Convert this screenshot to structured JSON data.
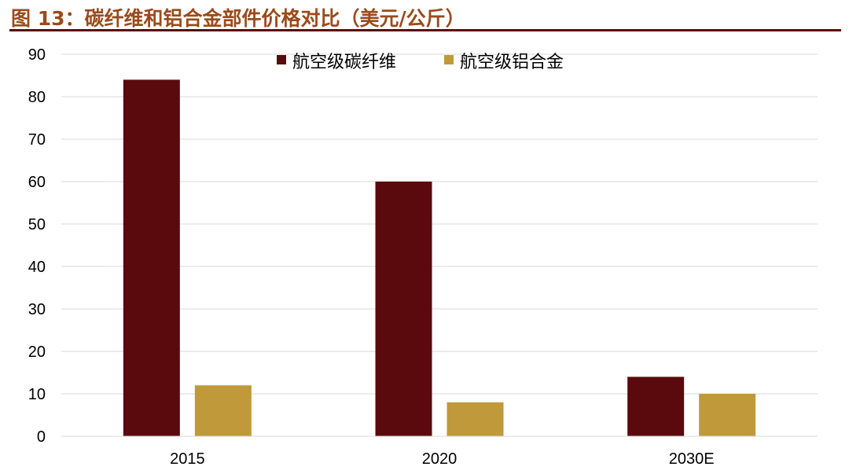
{
  "figure_title": "图 13：碳纤维和铝合金部件价格对比（美元/公斤）",
  "chart_data": {
    "type": "bar",
    "title": "",
    "categories": [
      "2015",
      "2020",
      "2030E"
    ],
    "series": [
      {
        "name": "航空级碳纤维",
        "values": [
          84,
          60,
          14
        ],
        "color": "#5a0a0c"
      },
      {
        "name": "航空级铝合金",
        "values": [
          12,
          8,
          10
        ],
        "color": "#c09a3a"
      }
    ],
    "xlabel": "",
    "ylabel": "",
    "ylim": [
      0,
      90
    ],
    "yticks": [
      0,
      10,
      20,
      30,
      40,
      50,
      60,
      70,
      80,
      90
    ],
    "grid": true,
    "legend": "top-center"
  }
}
